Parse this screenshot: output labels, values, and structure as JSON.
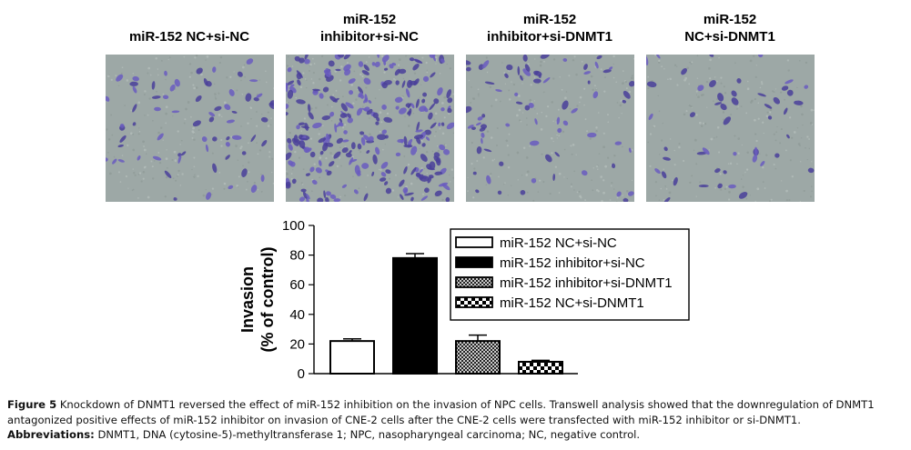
{
  "panels": [
    {
      "title_line1": "miR-152 NC+si-NC",
      "title_line2": "",
      "density": 0.18
    },
    {
      "title_line1": "miR-152",
      "title_line2": "inhibitor+si-NC",
      "density": 1.0
    },
    {
      "title_line1": "miR-152",
      "title_line2": "inhibitor+si-DNMT1",
      "density": 0.2
    },
    {
      "title_line1": "miR-152",
      "title_line2": "NC+si-DNMT1",
      "density": 0.1
    }
  ],
  "chart_data": {
    "type": "bar",
    "categories": [
      "miR-152 NC+si-NC",
      "miR-152 inhibitor+si-NC",
      "miR-152 inhibitor+si-DNMT1",
      "miR-152 NC+si-DNMT1"
    ],
    "values": [
      22,
      78,
      22,
      8
    ],
    "errors": [
      1.5,
      3,
      4,
      1
    ],
    "fills": [
      "white",
      "black",
      "crosshatch",
      "checker"
    ],
    "ylabel_line1": "Invasion",
    "ylabel_line2": "(% of control)",
    "ylim": [
      0,
      100
    ],
    "yticks": [
      "0",
      "20",
      "40",
      "60",
      "80",
      "100"
    ],
    "legend": [
      "miR-152 NC+si-NC",
      "miR-152 inhibitor+si-NC",
      "miR-152 inhibitor+si-DNMT1",
      "miR-152 NC+si-DNMT1"
    ],
    "legend_position": "top-right"
  },
  "caption": {
    "figure_label": "Figure 5",
    "text": " Knockdown of DNMT1 reversed the effect of miR-152 inhibition on the invasion of NPC cells. Transwell analysis showed that the downregulation of DNMT1 antagonized positive effects of miR-152 inhibitor on invasion of CNE-2 cells after the CNE-2 cells were transfected with miR-152 inhibitor or si-DNMT1.",
    "abbrev_label": "Abbreviations:",
    "abbrev_text": " DNMT1, DNA (cytosine-5)-methyltransferase 1; NPC, nasopharyngeal carcinoma; NC, negative control."
  }
}
